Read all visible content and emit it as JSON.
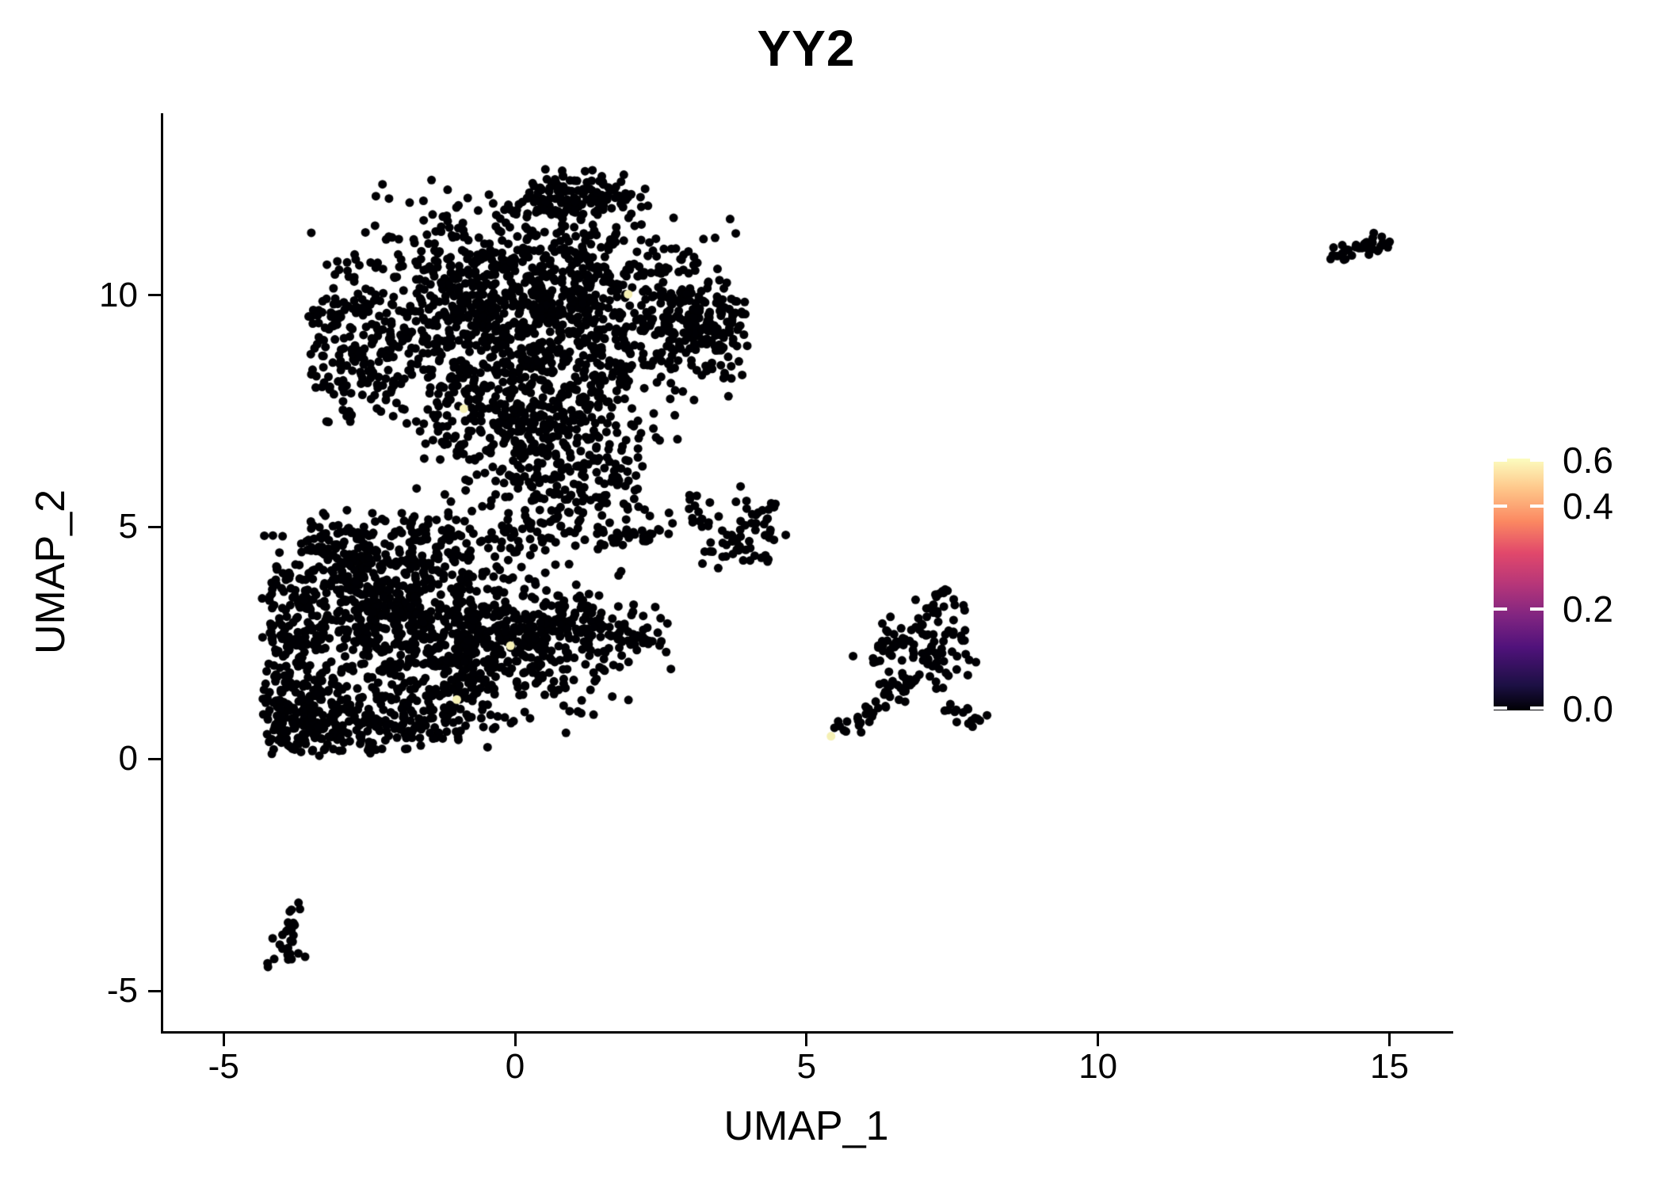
{
  "title": "YY2",
  "axes": {
    "x": {
      "label": "UMAP_1",
      "ticks": [
        -5,
        0,
        5,
        10,
        15
      ]
    },
    "y": {
      "label": "UMAP_2",
      "ticks": [
        10,
        5,
        0,
        -5
      ]
    }
  },
  "legend": {
    "tick_labels": [
      "0.6",
      "0.4",
      "0.2",
      "0.0"
    ],
    "tick_values": [
      0.6,
      0.4,
      0.2,
      0.0
    ],
    "domain": [
      0.0,
      0.7
    ],
    "colormap": "magma",
    "gradient_stops": [
      {
        "at": 0.0,
        "color": "#000004"
      },
      {
        "at": 0.1,
        "color": "#1c1044"
      },
      {
        "at": 0.25,
        "color": "#50127b"
      },
      {
        "at": 0.375,
        "color": "#812581"
      },
      {
        "at": 0.5,
        "color": "#b63679"
      },
      {
        "at": 0.625,
        "color": "#e1486b"
      },
      {
        "at": 0.75,
        "color": "#fb8861"
      },
      {
        "at": 0.875,
        "color": "#fec488"
      },
      {
        "at": 1.0,
        "color": "#fcfdbf"
      }
    ]
  },
  "chart_data": {
    "type": "scatter",
    "title": "YY2",
    "xlabel": "UMAP_1",
    "ylabel": "UMAP_2",
    "xlim": [
      -6.05,
      16.04
    ],
    "ylim": [
      -5.87,
      13.92
    ],
    "grid": false,
    "point_color": "#000004",
    "highlight_color": "#f5f0b4",
    "point_radius": 5.5,
    "color_scale": {
      "name": "magma",
      "domain": [
        0.0,
        0.7
      ],
      "ticks": [
        0.0,
        0.2,
        0.4,
        0.6
      ]
    },
    "seed": 42,
    "clusters": [
      {
        "name": "main-upper-peak",
        "shape": "gauss",
        "n": 120,
        "cx": 0.95,
        "cy": 12.15,
        "sx": 0.5,
        "sy": 0.28,
        "clip": [
          -0.6,
          2.3,
          11.55,
          12.72
        ]
      },
      {
        "name": "main-upper-band",
        "shape": "gauss",
        "n": 470,
        "cx": 0.15,
        "cy": 10.5,
        "sx": 1.5,
        "sy": 0.8,
        "clip": [
          -3.3,
          3.7,
          8.7,
          12.45
        ]
      },
      {
        "name": "main-mid-band",
        "shape": "gauss",
        "n": 520,
        "cx": 0.3,
        "cy": 9.25,
        "sx": 1.7,
        "sy": 0.75,
        "clip": [
          -3.5,
          4.0,
          7.5,
          11.3
        ]
      },
      {
        "name": "main-right-hook",
        "shape": "gauss",
        "n": 150,
        "cx": 3.25,
        "cy": 9.3,
        "sx": 0.45,
        "sy": 0.6,
        "clip": [
          2.3,
          4.05,
          8.2,
          10.3
        ]
      },
      {
        "name": "main-left-arm",
        "shape": "gauss",
        "n": 140,
        "cx": -2.85,
        "cy": 9.0,
        "sx": 0.42,
        "sy": 1.0,
        "clip": [
          -3.55,
          -2.0,
          7.2,
          10.7
        ]
      },
      {
        "name": "main-band-lower",
        "shape": "gauss",
        "n": 300,
        "cx": 0.25,
        "cy": 7.7,
        "sx": 1.2,
        "sy": 0.6,
        "clip": [
          -2.7,
          2.8,
          6.6,
          8.9
        ]
      },
      {
        "name": "main-funnel",
        "shape": "gauss",
        "n": 170,
        "cx": 0.5,
        "cy": 6.6,
        "sx": 0.95,
        "sy": 0.55,
        "clip": [
          -1.8,
          2.4,
          5.6,
          7.8
        ]
      },
      {
        "name": "main-tip",
        "shape": "gauss",
        "n": 70,
        "cx": 0.8,
        "cy": 5.8,
        "sx": 0.65,
        "sy": 0.4,
        "clip": [
          -0.6,
          2.2,
          5.0,
          6.6
        ]
      },
      {
        "name": "main-halo",
        "shape": "gauss",
        "n": 80,
        "cx": 0.2,
        "cy": 9.8,
        "sx": 2.3,
        "sy": 1.7,
        "clip": [
          -3.55,
          4.05,
          5.4,
          12.6
        ]
      },
      {
        "name": "bridge-streak",
        "shape": "line",
        "n": 28,
        "x1": 1.35,
        "y1": 4.72,
        "x2": 2.55,
        "y2": 4.85,
        "jx": 0.1,
        "jy": 0.09
      },
      {
        "name": "bridge-dots",
        "shape": "gauss",
        "n": 22,
        "cx": 1.75,
        "cy": 5.3,
        "sx": 0.5,
        "sy": 0.3
      },
      {
        "name": "lower-core-a",
        "shape": "gauss",
        "n": 420,
        "cx": -2.15,
        "cy": 3.35,
        "sx": 0.95,
        "sy": 0.85,
        "clip": [
          -4.3,
          0.8,
          0.3,
          5.3
        ]
      },
      {
        "name": "lower-core-b",
        "shape": "gauss",
        "n": 380,
        "cx": -1.0,
        "cy": 2.2,
        "sx": 1.2,
        "sy": 0.75,
        "clip": [
          -3.8,
          1.8,
          0.2,
          4.4
        ]
      },
      {
        "name": "lower-right-wedge",
        "shape": "gauss",
        "n": 230,
        "cx": 0.7,
        "cy": 2.7,
        "sx": 0.95,
        "sy": 0.55,
        "clip": [
          -1.0,
          2.75,
          1.2,
          4.2
        ]
      },
      {
        "name": "lower-wedge-tail",
        "shape": "line",
        "n": 22,
        "x1": 1.7,
        "y1": 2.6,
        "x2": 2.6,
        "y2": 2.5,
        "jx": 0.18,
        "jy": 0.14
      },
      {
        "name": "lower-knot",
        "shape": "gauss",
        "n": 170,
        "cx": -3.55,
        "cy": 0.8,
        "sx": 0.45,
        "sy": 0.42,
        "clip": [
          -4.35,
          -2.6,
          0.05,
          2.0
        ]
      },
      {
        "name": "lower-left-column",
        "shape": "gauss",
        "n": 120,
        "cx": -3.85,
        "cy": 2.7,
        "sx": 0.3,
        "sy": 1.1,
        "clip": [
          -4.35,
          -3.1,
          0.4,
          4.9
        ]
      },
      {
        "name": "lower-bottom-band",
        "shape": "gauss",
        "n": 130,
        "cx": -2.1,
        "cy": 0.75,
        "sx": 0.85,
        "sy": 0.35,
        "clip": [
          -3.6,
          -0.3,
          0.05,
          1.6
        ]
      },
      {
        "name": "lower-upleft-arm",
        "shape": "gauss",
        "n": 110,
        "cx": -2.95,
        "cy": 4.5,
        "sx": 0.5,
        "sy": 0.5,
        "clip": [
          -3.9,
          -1.8,
          3.4,
          5.45
        ]
      },
      {
        "name": "lower-top-sparse",
        "shape": "gauss",
        "n": 90,
        "cx": -0.6,
        "cy": 4.85,
        "sx": 1.1,
        "sy": 0.42,
        "clip": [
          -2.2,
          1.2,
          4.0,
          5.6
        ]
      },
      {
        "name": "lower-halo",
        "shape": "gauss",
        "n": 80,
        "cx": -1.6,
        "cy": 2.8,
        "sx": 1.9,
        "sy": 1.5,
        "clip": [
          -4.35,
          2.5,
          0.1,
          5.5
        ]
      },
      {
        "name": "mid-knot",
        "shape": "gauss",
        "n": 45,
        "cx": 4.1,
        "cy": 4.85,
        "sx": 0.33,
        "sy": 0.42,
        "clip": [
          3.3,
          4.72,
          4.05,
          5.8
        ]
      },
      {
        "name": "mid-arm",
        "shape": "gauss",
        "n": 20,
        "cx": 3.45,
        "cy": 5.3,
        "sx": 0.28,
        "sy": 0.28
      },
      {
        "name": "mid-below",
        "shape": "gauss",
        "n": 10,
        "cx": 3.7,
        "cy": 4.45,
        "sx": 0.28,
        "sy": 0.18
      },
      {
        "name": "right-top-lobe",
        "shape": "gauss",
        "n": 85,
        "cx": 7.0,
        "cy": 2.55,
        "sx": 0.52,
        "sy": 0.46,
        "clip": [
          6.0,
          7.95,
          1.4,
          3.45
        ]
      },
      {
        "name": "right-up-arm",
        "shape": "line",
        "n": 10,
        "x1": 7.1,
        "y1": 3.2,
        "x2": 7.4,
        "y2": 3.7,
        "jx": 0.09,
        "jy": 0.08
      },
      {
        "name": "right-left-lobe",
        "shape": "gauss",
        "n": 18,
        "cx": 6.42,
        "cy": 2.3,
        "sx": 0.3,
        "sy": 0.18
      },
      {
        "name": "right-tail",
        "shape": "line",
        "n": 40,
        "x1": 5.48,
        "y1": 0.52,
        "x2": 6.8,
        "y2": 1.6,
        "jx": 0.13,
        "jy": 0.1
      },
      {
        "name": "right-streak",
        "shape": "line",
        "n": 16,
        "x1": 7.35,
        "y1": 1.05,
        "x2": 8.0,
        "y2": 0.82,
        "jx": 0.1,
        "jy": 0.07
      },
      {
        "name": "right-scatter",
        "shape": "gauss",
        "n": 8,
        "cx": 6.7,
        "cy": 1.7,
        "sx": 0.4,
        "sy": 0.25
      },
      {
        "name": "tiny-upper-seg",
        "shape": "line",
        "n": 10,
        "x1": -3.66,
        "y1": -3.05,
        "x2": -3.9,
        "y2": -3.65,
        "jx": 0.07,
        "jy": 0.07
      },
      {
        "name": "tiny-knot",
        "shape": "gauss",
        "n": 20,
        "cx": -3.9,
        "cy": -4.1,
        "sx": 0.2,
        "sy": 0.28,
        "clip": [
          -4.25,
          -3.5,
          -4.55,
          -3.6
        ]
      },
      {
        "name": "isolate-right",
        "shape": "line",
        "n": 30,
        "x1": 14.05,
        "y1": 10.88,
        "x2": 14.95,
        "y2": 11.15,
        "jx": 0.1,
        "jy": 0.09
      },
      {
        "name": "isolate-right-knot",
        "shape": "gauss",
        "n": 6,
        "cx": 14.75,
        "cy": 11.05,
        "sx": 0.18,
        "sy": 0.1
      }
    ],
    "highlight_points": [
      [
        5.42,
        0.49
      ],
      [
        -0.08,
        2.44
      ],
      [
        -1.0,
        1.28
      ],
      [
        1.94,
        10.02
      ],
      [
        -0.88,
        7.55
      ]
    ]
  }
}
